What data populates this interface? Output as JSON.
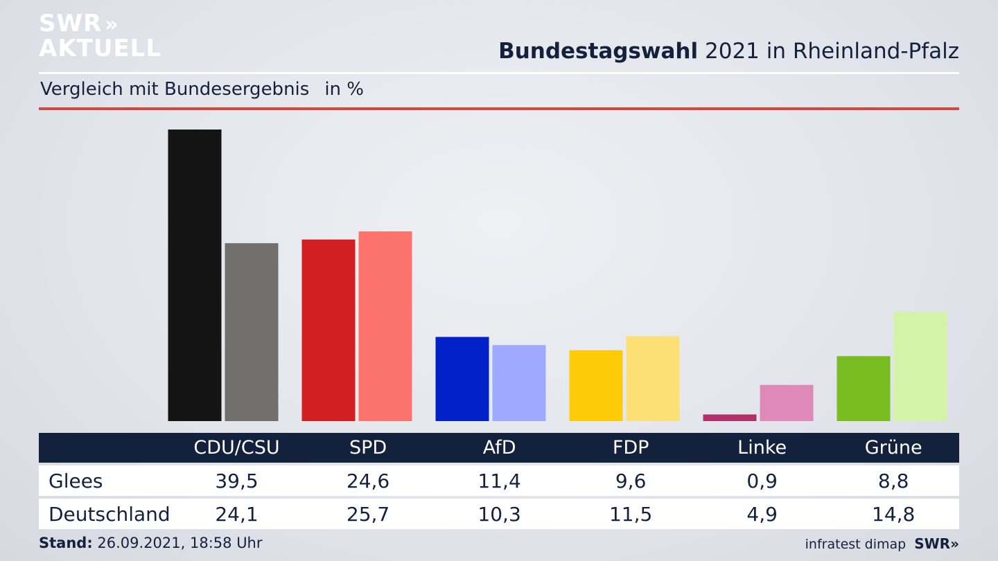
{
  "logo": {
    "line1": "SWR",
    "line1_mark": "»",
    "line2": "AKTUELL"
  },
  "header": {
    "title_bold": "Bundestagswahl",
    "title_rest": "2021 in Rheinland-Pfalz",
    "subtitle": "Vergleich mit Bundesergebnis",
    "unit": "in %"
  },
  "colors": {
    "navy": "#14213d",
    "accent_red_rule": "#d5473b"
  },
  "chart_data": {
    "type": "bar",
    "title": "Bundestagswahl 2021 in Rheinland-Pfalz",
    "subtitle": "Vergleich mit Bundesergebnis",
    "unit": "%",
    "categories": [
      "CDU/CSU",
      "SPD",
      "AfD",
      "FDP",
      "Linke",
      "Grüne"
    ],
    "series": [
      {
        "name": "Glees",
        "values": [
          39.5,
          24.6,
          11.4,
          9.6,
          0.9,
          8.8
        ],
        "display": [
          "39,5",
          "24,6",
          "11,4",
          "9,6",
          "0,9",
          "8,8"
        ],
        "colors": [
          "#141414",
          "#d21f21",
          "#0020c8",
          "#fecb0a",
          "#b0306a",
          "#78bc22"
        ]
      },
      {
        "name": "Deutschland",
        "values": [
          24.1,
          25.7,
          10.3,
          11.5,
          4.9,
          14.8
        ],
        "display": [
          "24,1",
          "25,7",
          "10,3",
          "11,5",
          "4,9",
          "14,8"
        ],
        "colors": [
          "#706f6d",
          "#fc736e",
          "#9eaaff",
          "#fde074",
          "#df89b8",
          "#d4f3a9"
        ]
      }
    ],
    "ylim": [
      0,
      40
    ],
    "legend": "table-below",
    "grid": false
  },
  "footer": {
    "stand_label": "Stand:",
    "stand_value": "26.09.2021, 18:58 Uhr",
    "source": "infratest dimap",
    "brand": "SWR»"
  }
}
